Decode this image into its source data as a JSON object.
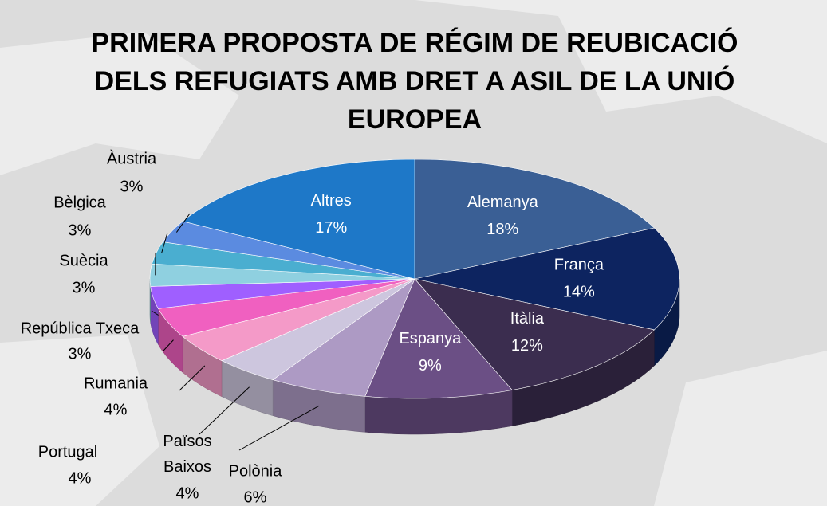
{
  "chart_data": {
    "type": "pie",
    "title": "PRIMERA PROPOSTA DE RÉGIM DE REUBICACIÓ DELS REFUGIATS AMB DRET A ASIL DE LA UNIÓ EUROPEA",
    "categories": [
      "Alemanya",
      "França",
      "Itàlia",
      "Espanya",
      "Polònia",
      "Països Baixos",
      "Portugal",
      "Rumania",
      "República Txeca",
      "Suècia",
      "Bèlgica",
      "Àustria",
      "Altres"
    ],
    "values": [
      18,
      14,
      12,
      9,
      6,
      4,
      4,
      4,
      3,
      3,
      3,
      3,
      17
    ],
    "value_labels": [
      "18%",
      "14%",
      "12%",
      "9%",
      "6%",
      "4%",
      "4%",
      "4%",
      "3%",
      "3%",
      "3%",
      "3%",
      "17%"
    ],
    "colors": [
      "#3a5f95",
      "#0d2460",
      "#3b2d4f",
      "#6b4f85",
      "#ad9ac4",
      "#cdc6de",
      "#f49ac8",
      "#f060c0",
      "#9f5fff",
      "#8fd0e0",
      "#4aaed0",
      "#5b8be0",
      "#1e78c8"
    ]
  }
}
